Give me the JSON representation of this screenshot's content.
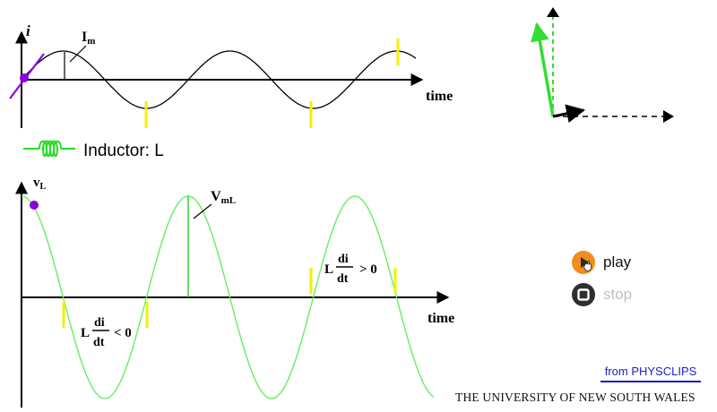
{
  "current_plot": {
    "axis_y_label": "i",
    "axis_x_label": "time",
    "amplitude_label": "I",
    "amplitude_subscript": "m"
  },
  "component": {
    "label": "Inductor: L",
    "color": "#22dd22"
  },
  "voltage_plot": {
    "axis_y_label": "v",
    "axis_y_subscript": "L",
    "axis_x_label": "time",
    "amplitude_label": "V",
    "amplitude_subscript": "mL",
    "neg_slope": {
      "prefix": "L",
      "num": "di",
      "den": "dt",
      "suffix": "< 0"
    },
    "pos_slope": {
      "prefix": "L",
      "num": "di",
      "den": "dt",
      "suffix": "> 0"
    }
  },
  "colors": {
    "current_curve": "#000000",
    "voltage_curve": "#66ee66",
    "marker": "#8800dd",
    "zero_markers": "#f2f200",
    "phasor_voltage": "#33dd33",
    "phasor_current": "#000000",
    "play_button": "#f08d1c",
    "stop_button": "#2f2f2f",
    "link": "#1b1bd0"
  },
  "controls": {
    "play_label": "play",
    "stop_label": "stop"
  },
  "footer": {
    "link_text": "from PHYSCLIPS",
    "institution": "THE UNIVERSITY OF NEW SOUTH WALES"
  }
}
